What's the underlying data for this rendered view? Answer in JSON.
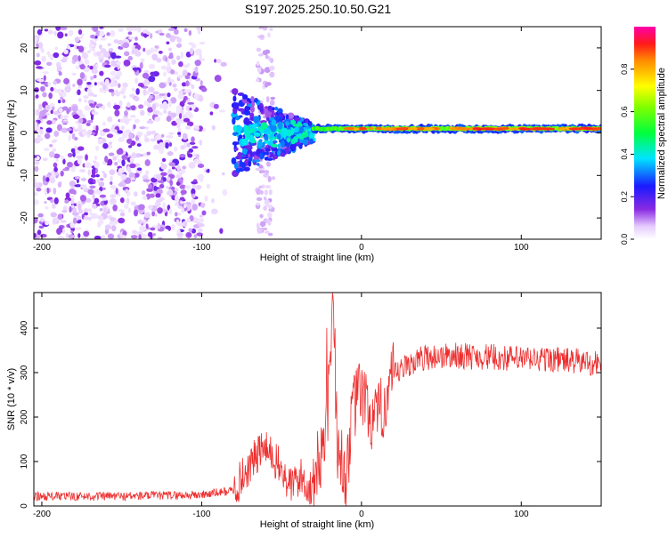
{
  "title": "S197.2025.250.10.50.G21",
  "chart_data": [
    {
      "type": "heatmap",
      "xlabel": "Height of straight line (km)",
      "ylabel": "Frequency (Hz)",
      "xlim": [
        -205,
        150
      ],
      "ylim": [
        -25,
        25
      ],
      "xticks": [
        -200,
        -100,
        0,
        100
      ],
      "yticks": [
        -20,
        -10,
        0,
        10,
        20
      ],
      "colorbar": {
        "label": "Normalized spectral amplitude",
        "range": [
          0,
          1
        ],
        "ticks": [
          0.0,
          0.2,
          0.4,
          0.6,
          0.8
        ]
      },
      "description_regions": [
        {
          "x_range": [
            -205,
            -80
          ],
          "freq_range": [
            -25,
            25
          ],
          "amplitude_range": [
            0.0,
            0.15
          ],
          "note": "diffuse low-amplitude noise"
        },
        {
          "x_range": [
            -80,
            -30
          ],
          "freq_range": [
            -10,
            10
          ],
          "amplitude_range": [
            0.1,
            0.5
          ],
          "note": "transition band"
        },
        {
          "x_range": [
            -30,
            150
          ],
          "freq_range": [
            0,
            2
          ],
          "amplitude_range": [
            0.4,
            1.0
          ],
          "note": "narrow strong line near 1 Hz"
        }
      ]
    },
    {
      "type": "line",
      "xlabel": "Height of straight line (km)",
      "ylabel": "SNR (10 * v/v)",
      "xlim": [
        -205,
        150
      ],
      "ylim": [
        0,
        480
      ],
      "xticks": [
        -200,
        -100,
        0,
        100
      ],
      "yticks": [
        0,
        100,
        200,
        300,
        400
      ],
      "color": "#ee2e2e",
      "trend": {
        "x": [
          -205,
          -150,
          -100,
          -80,
          -70,
          -62,
          -55,
          -45,
          -38,
          -32,
          -25,
          -20,
          -18,
          -15,
          -10,
          -5,
          0,
          5,
          10,
          15,
          20,
          30,
          40,
          60,
          80,
          100,
          120,
          150
        ],
        "y": [
          22,
          22,
          25,
          35,
          90,
          130,
          110,
          45,
          65,
          40,
          120,
          250,
          470,
          140,
          60,
          220,
          260,
          200,
          190,
          240,
          290,
          320,
          335,
          338,
          335,
          330,
          330,
          320
        ]
      }
    }
  ]
}
